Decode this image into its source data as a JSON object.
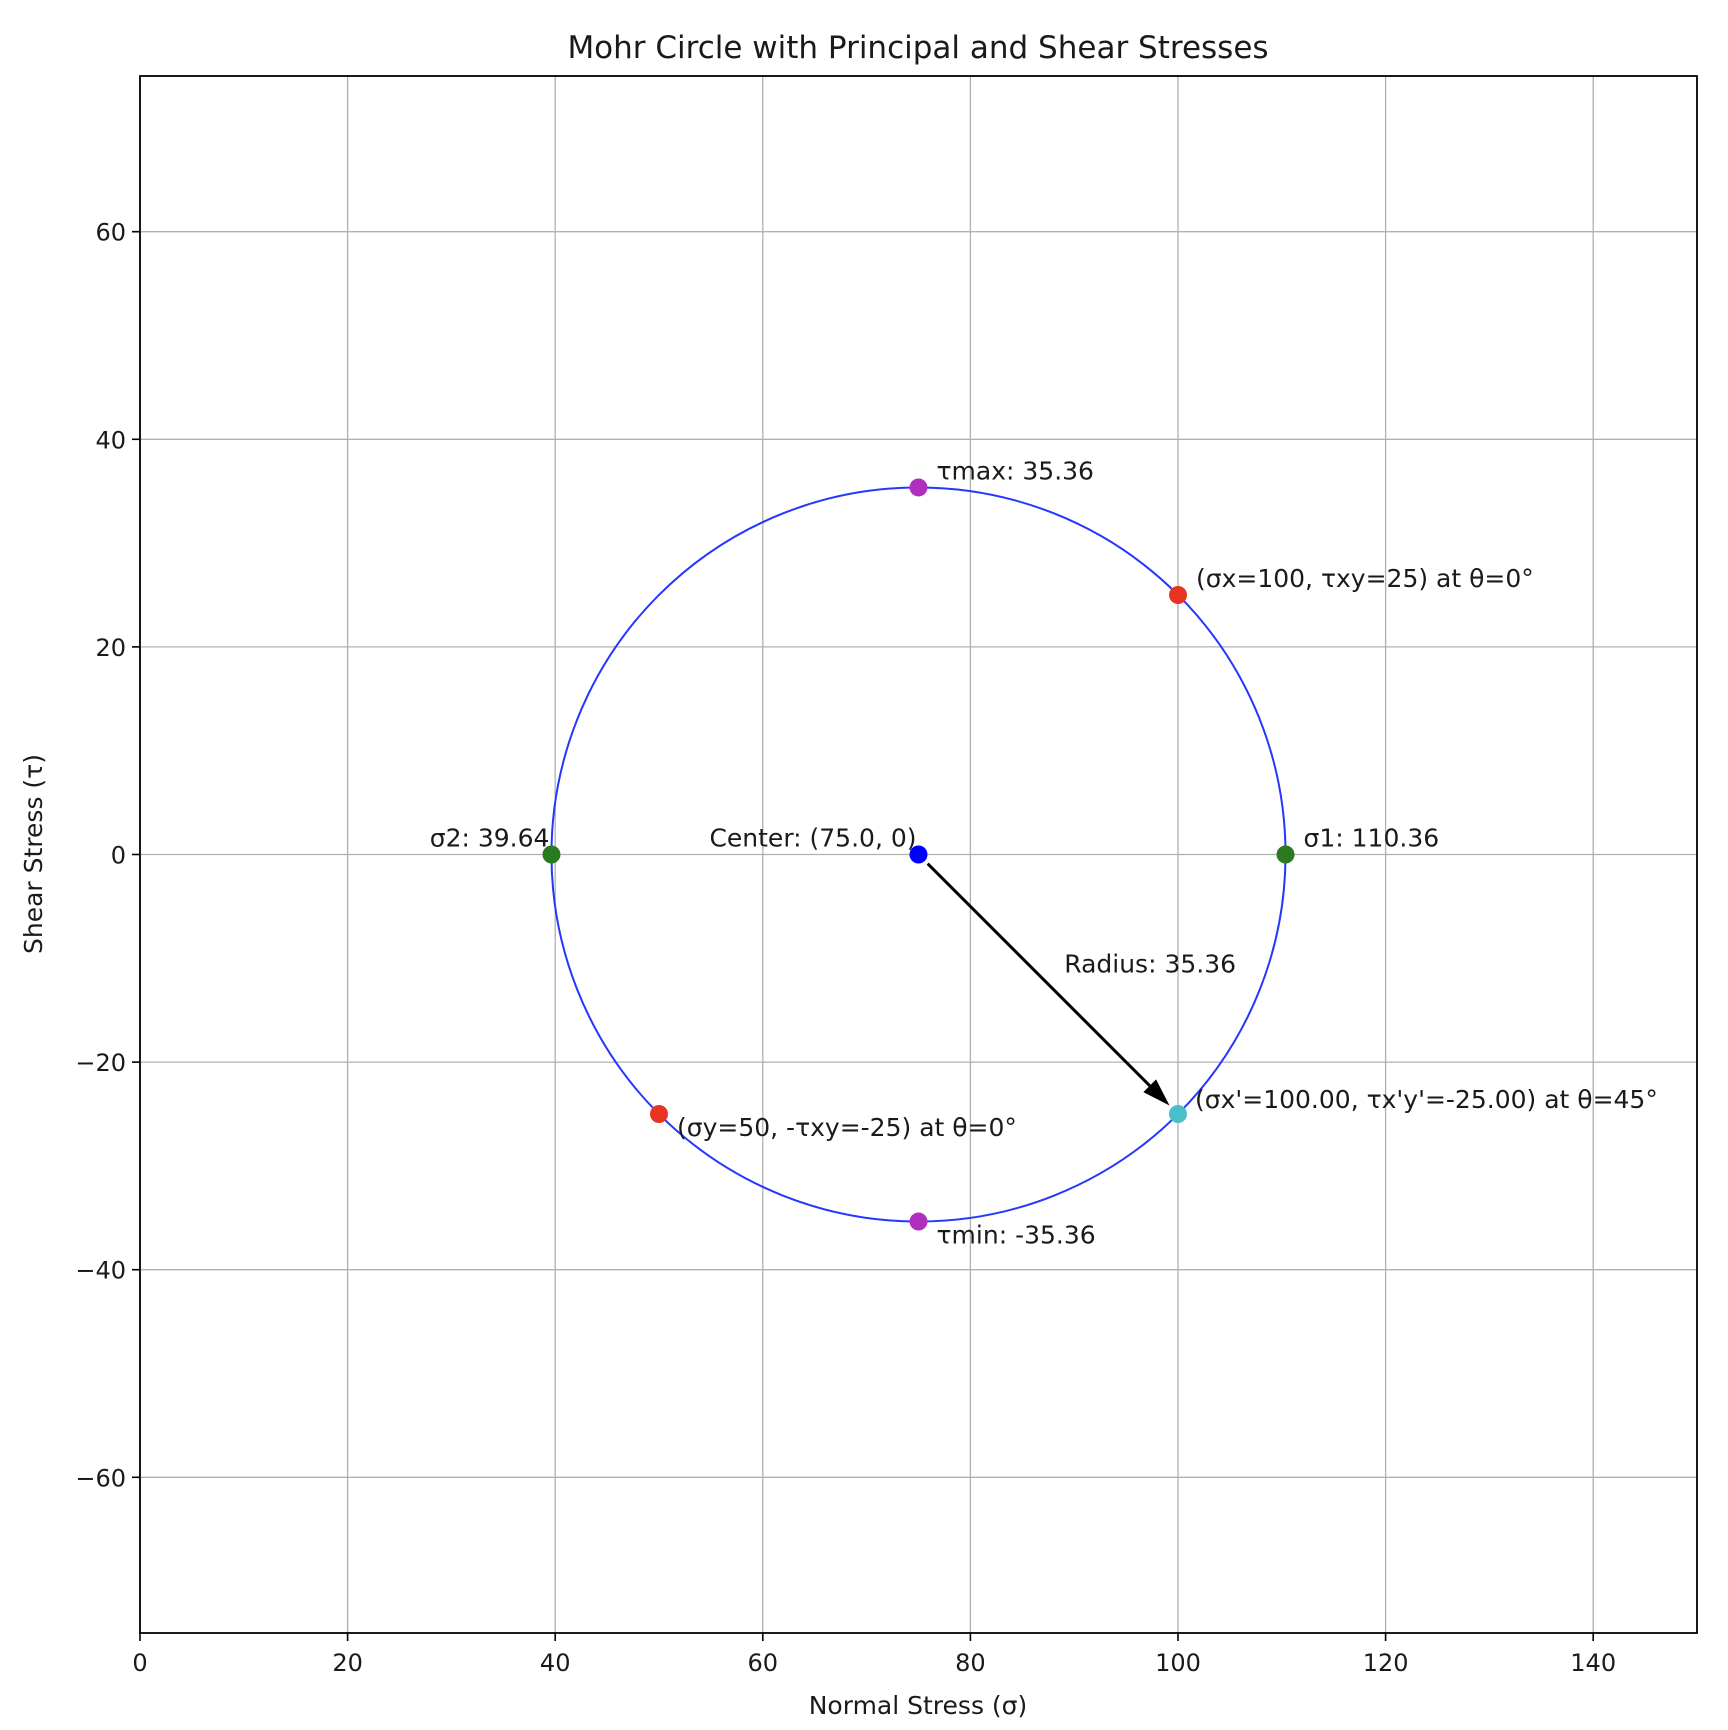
{
  "chart_data": {
    "type": "scatter",
    "title": "Mohr Circle with Principal and Shear Stresses",
    "xlabel": "Normal Stress (σ)",
    "ylabel": "Shear Stress (τ)",
    "xlim": [
      0,
      150
    ],
    "ylim": [
      -75,
      75
    ],
    "grid": true,
    "x_ticks": [
      0,
      20,
      40,
      60,
      80,
      100,
      120,
      140
    ],
    "y_ticks": [
      -60,
      -40,
      -20,
      0,
      20,
      40,
      60
    ],
    "x_tick_labels": [
      "0",
      "20",
      "40",
      "60",
      "80",
      "100",
      "120",
      "140"
    ],
    "y_tick_labels": [
      "−60",
      "−40",
      "−20",
      "0",
      "20",
      "40",
      "60"
    ],
    "circle": {
      "center": [
        75.0,
        0
      ],
      "radius": 35.36,
      "color": "#2636ff"
    },
    "points": [
      {
        "name": "center",
        "x": 75.0,
        "y": 0,
        "color": "#0000ff",
        "label": "Center: (75.0, 0)",
        "anchor": "end"
      },
      {
        "name": "sigma1",
        "x": 110.36,
        "y": 0,
        "color": "#2a7a1f",
        "label": "σ1: 110.36",
        "anchor": "start"
      },
      {
        "name": "sigma2",
        "x": 39.64,
        "y": 0,
        "color": "#2a7a1f",
        "label": "σ2: 39.64",
        "anchor": "end"
      },
      {
        "name": "tau-max",
        "x": 75.0,
        "y": 35.36,
        "color": "#b02fc1",
        "label": "τmax: 35.36",
        "anchor": "start"
      },
      {
        "name": "tau-min",
        "x": 75.0,
        "y": -35.36,
        "color": "#b02fc1",
        "label": "τmin: -35.36",
        "anchor": "start"
      },
      {
        "name": "stress-x",
        "x": 100,
        "y": 25,
        "color": "#ea3323",
        "label": "(σx=100, τxy=25) at θ=0°",
        "anchor": "start"
      },
      {
        "name": "stress-y",
        "x": 50,
        "y": -25,
        "color": "#ea3323",
        "label": "(σy=50, -τxy=-25) at θ=0°",
        "anchor": "start"
      },
      {
        "name": "stress-rotated",
        "x": 100,
        "y": -25,
        "color": "#4bbfc9",
        "label": "(σx'=100.00, τx'y'=-25.00) at θ=45°",
        "anchor": "start"
      }
    ],
    "arrow": {
      "from": [
        75.0,
        0
      ],
      "to": [
        100,
        -25
      ],
      "label": "Radius: 35.36",
      "color": "#000000"
    }
  }
}
